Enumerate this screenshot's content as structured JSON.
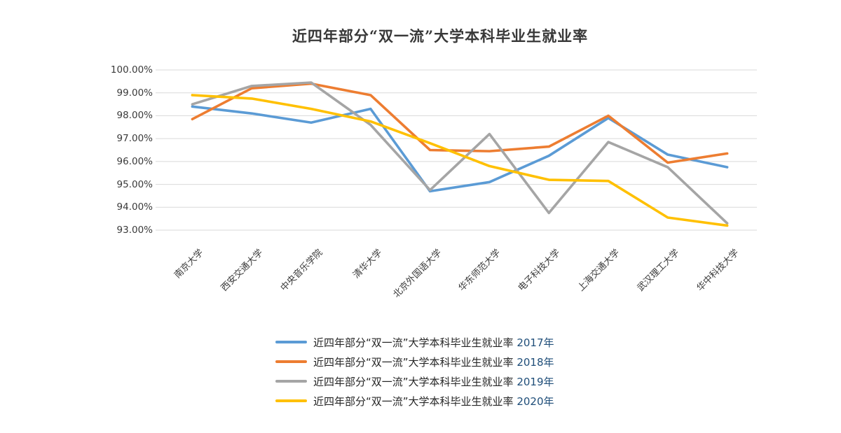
{
  "title": "近四年部分“双一流”大学本科毕业生就业率",
  "chart_data": {
    "type": "line",
    "categories": [
      "南京大学",
      "西安交通大学",
      "中央音乐学院",
      "清华大学",
      "北京外国语大学",
      "华东师范大学",
      "电子科技大学",
      "上海交通大学",
      "武汉理工大学",
      "华中科技大学"
    ],
    "series": [
      {
        "name": "近四年部分“双一流”大学本科毕业生就业率 2017年",
        "year_label": "2017年",
        "color": "#5B9BD5",
        "values": [
          98.4,
          98.1,
          97.7,
          98.3,
          94.7,
          95.1,
          96.25,
          97.9,
          96.3,
          95.75
        ]
      },
      {
        "name": "近四年部分“双一流”大学本科毕业生就业率 2018年",
        "year_label": "2018年",
        "color": "#ED7D31",
        "values": [
          97.85,
          99.2,
          99.4,
          98.9,
          96.5,
          96.45,
          96.65,
          98.0,
          95.95,
          96.35
        ]
      },
      {
        "name": "近四年部分“双一流”大学本科毕业生就业率 2019年",
        "year_label": "2019年",
        "color": "#A5A5A5",
        "values": [
          98.5,
          99.3,
          99.45,
          97.6,
          94.75,
          97.2,
          93.75,
          96.85,
          95.75,
          93.3
        ]
      },
      {
        "name": "近四年部分“双一流”大学本科毕业生就业率 2020年",
        "year_label": "2020年",
        "color": "#FFC000",
        "values": [
          98.9,
          98.75,
          98.3,
          97.75,
          96.8,
          95.8,
          95.2,
          95.15,
          93.55,
          93.2
        ]
      }
    ],
    "legend_prefix": "近四年部分“双一流”大学本科毕业生就业率 ",
    "legend_position": "bottom-left",
    "xlabel": "",
    "ylabel": "",
    "ylim": [
      93,
      100
    ],
    "ytick_step": 1,
    "ytick_labels": [
      "100.00%",
      "99.00%",
      "98.00%",
      "97.00%",
      "96.00%",
      "95.00%",
      "94.00%",
      "93.00%"
    ],
    "grid": true,
    "gridline_color": "#D9D9D9",
    "background_color": "#FFFFFF"
  }
}
